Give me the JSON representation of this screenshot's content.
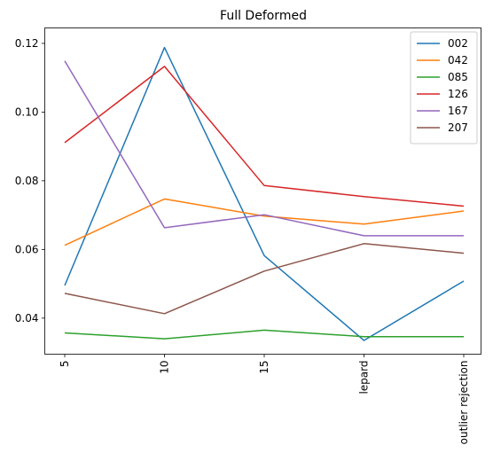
{
  "chart_data": {
    "type": "line",
    "title": "Full Deformed",
    "xlabel": "",
    "ylabel": "",
    "categories": [
      "5",
      "10",
      "15",
      "lepard",
      "outlier rejection"
    ],
    "ylim": [
      0.0295,
      0.1245
    ],
    "yticks": [
      "0.04",
      "0.06",
      "0.08",
      "0.10",
      "0.12"
    ],
    "ytick_values": [
      0.04,
      0.06,
      0.08,
      0.1,
      0.12
    ],
    "grid": false,
    "legend_position": "top-right",
    "series": [
      {
        "name": "002",
        "color": "#1f77b4",
        "values": [
          0.0495,
          0.1188,
          0.0582,
          0.0335,
          0.0508
        ]
      },
      {
        "name": "042",
        "color": "#ff7f0e",
        "values": [
          0.0612,
          0.0747,
          0.0697,
          0.0674,
          0.0712
        ]
      },
      {
        "name": "085",
        "color": "#2ca02c",
        "values": [
          0.0357,
          0.034,
          0.0365,
          0.0346,
          0.0346
        ]
      },
      {
        "name": "126",
        "color": "#d62728",
        "values": [
          0.0911,
          0.1133,
          0.0786,
          0.0754,
          0.0726
        ]
      },
      {
        "name": "167",
        "color": "#9467bd",
        "values": [
          0.1149,
          0.0663,
          0.0701,
          0.064,
          0.064
        ]
      },
      {
        "name": "207",
        "color": "#8c564b",
        "values": [
          0.0472,
          0.0413,
          0.0537,
          0.0617,
          0.0589
        ]
      }
    ]
  }
}
